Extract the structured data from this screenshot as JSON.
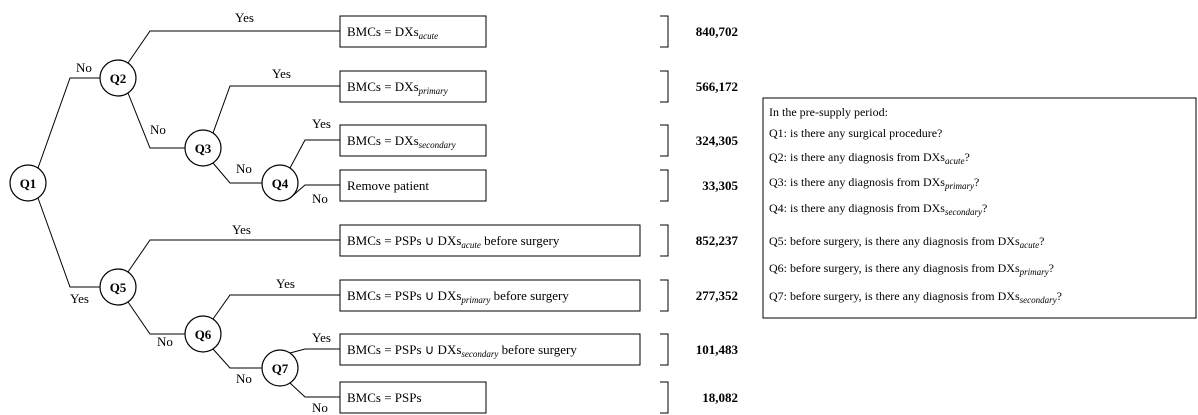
{
  "nodes": [
    {
      "label": "Q1"
    },
    {
      "label": "Q2"
    },
    {
      "label": "Q3"
    },
    {
      "label": "Q4"
    },
    {
      "label": "Q5"
    },
    {
      "label": "Q6"
    },
    {
      "label": "Q7"
    }
  ],
  "edges": [
    "No",
    "Yes",
    "Yes",
    "No",
    "Yes",
    "No",
    "Yes",
    "No",
    "Yes",
    "No",
    "Yes",
    "No",
    "Yes",
    "No"
  ],
  "outcomes": [
    {
      "label": {
        "text": "BMCs = DXs",
        "sub": "acute"
      },
      "count": "840,702"
    },
    {
      "label": {
        "text": "BMCs = DXs",
        "sub": "primary"
      },
      "count": "566,172"
    },
    {
      "label": {
        "text": "BMCs = DXs",
        "sub": "secondary"
      },
      "count": "324,305"
    },
    {
      "label": {
        "text": "Remove patient"
      },
      "count": "33,305"
    },
    {
      "label": {
        "text": "BMCs = PSPs ∪ DXs",
        "sub": "acute",
        "after": " before surgery"
      },
      "count": "852,237"
    },
    {
      "label": {
        "text": "BMCs = PSPs ∪ DXs",
        "sub": "primary",
        "after": " before surgery"
      },
      "count": "277,352"
    },
    {
      "label": {
        "text": "BMCs = PSPs ∪ DXs",
        "sub": "secondary",
        "after": " before surgery"
      },
      "count": "101,483"
    },
    {
      "label": {
        "text": "BMCs = PSPs"
      },
      "count": "18,082"
    }
  ],
  "legend": {
    "title": "In the pre-supply period:",
    "items": [
      {
        "text": "Q1: is there any surgical procedure?"
      },
      {
        "text": "Q2: is there any diagnosis from DXs",
        "sub": "acute",
        "after": "?"
      },
      {
        "text": "Q3: is there any diagnosis from DXs",
        "sub": "primary",
        "after": "?"
      },
      {
        "text": "Q4: is there any diagnosis from DXs",
        "sub": "secondary",
        "after": "?"
      },
      {
        "text": "Q5: before surgery, is there any diagnosis from DXs",
        "sub": "acute",
        "after": "?"
      },
      {
        "text": "Q6: before surgery, is there any diagnosis from DXs",
        "sub": "primary",
        "after": "?"
      },
      {
        "text": "Q7: before surgery, is there any diagnosis from DXs",
        "sub": "secondary",
        "after": "?"
      }
    ]
  }
}
